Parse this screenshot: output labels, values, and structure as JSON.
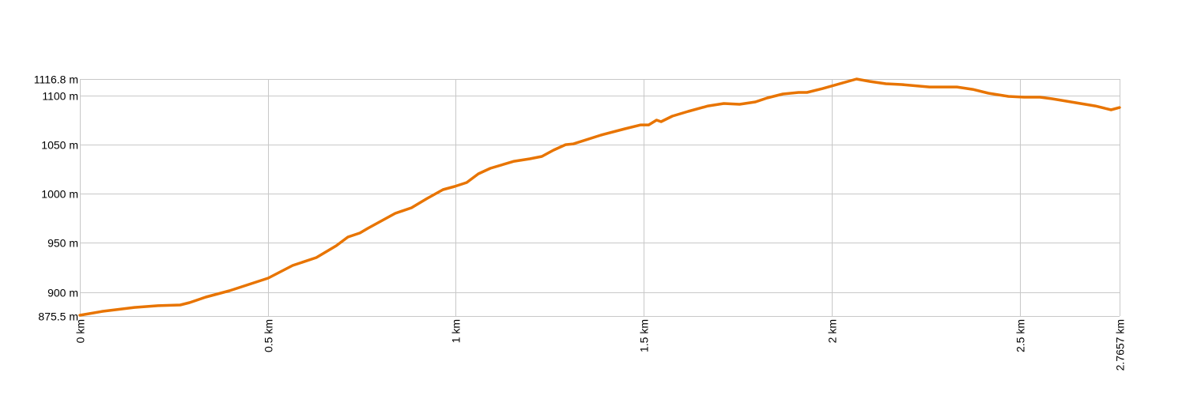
{
  "chart_data": {
    "type": "line",
    "title": "",
    "xlabel": "",
    "ylabel": "",
    "xlim": [
      0,
      2.7657
    ],
    "ylim": [
      875.5,
      1116.8
    ],
    "grid": true,
    "line_color": "#e87400",
    "grid_color": "#c8c8c8",
    "x_ticks": [
      {
        "value": 0,
        "label": "0 km"
      },
      {
        "value": 0.5,
        "label": "0.5 km"
      },
      {
        "value": 1,
        "label": "1 km"
      },
      {
        "value": 1.5,
        "label": "1.5 km"
      },
      {
        "value": 2,
        "label": "2 km"
      },
      {
        "value": 2.5,
        "label": "2.5 km"
      },
      {
        "value": 2.7657,
        "label": "2.7657 km"
      }
    ],
    "y_ticks": [
      {
        "value": 875.5,
        "label": "875.5 m"
      },
      {
        "value": 900,
        "label": "900 m"
      },
      {
        "value": 950,
        "label": "950 m"
      },
      {
        "value": 1000,
        "label": "1000 m"
      },
      {
        "value": 1050,
        "label": "1050 m"
      },
      {
        "value": 1100,
        "label": "1100 m"
      },
      {
        "value": 1116.8,
        "label": "1116.8 m"
      }
    ],
    "series": [
      {
        "x": [
          0,
          0.061,
          0.145,
          0.208,
          0.267,
          0.292,
          0.335,
          0.398,
          0.501,
          0.566,
          0.629,
          0.682,
          0.713,
          0.745,
          0.766,
          0.839,
          0.882,
          0.924,
          0.966,
          0.997,
          1.029,
          1.06,
          1.092,
          1.155,
          1.197,
          1.229,
          1.26,
          1.292,
          1.313,
          1.386,
          1.45,
          1.492,
          1.513,
          1.534,
          1.546,
          1.576,
          1.618,
          1.671,
          1.713,
          1.755,
          1.797,
          1.828,
          1.87,
          1.912,
          1.934,
          1.976,
          2.066,
          2.102,
          2.144,
          2.186,
          2.26,
          2.333,
          2.375,
          2.417,
          2.47,
          2.512,
          2.554,
          2.586,
          2.649,
          2.701,
          2.743,
          2.7657
        ],
        "y": [
          876.3,
          880.3,
          884.3,
          886.0,
          886.8,
          889.2,
          894.8,
          901.2,
          914.1,
          927.0,
          935.0,
          947.1,
          955.9,
          960.0,
          964.8,
          980.1,
          985.7,
          995.3,
          1004.2,
          1007.4,
          1011.4,
          1020.3,
          1025.9,
          1033.1,
          1035.6,
          1038.0,
          1044.4,
          1050.0,
          1050.8,
          1059.7,
          1066.1,
          1070.1,
          1070.1,
          1075.0,
          1073.4,
          1079.0,
          1083.8,
          1089.4,
          1091.9,
          1091.1,
          1093.5,
          1097.5,
          1101.5,
          1103.1,
          1103.1,
          1107.1,
          1116.8,
          1114.3,
          1112.0,
          1111.2,
          1108.7,
          1108.7,
          1106.3,
          1102.3,
          1099.1,
          1098.3,
          1098.3,
          1096.7,
          1092.7,
          1089.4,
          1085.4,
          1087.8
        ]
      }
    ]
  }
}
